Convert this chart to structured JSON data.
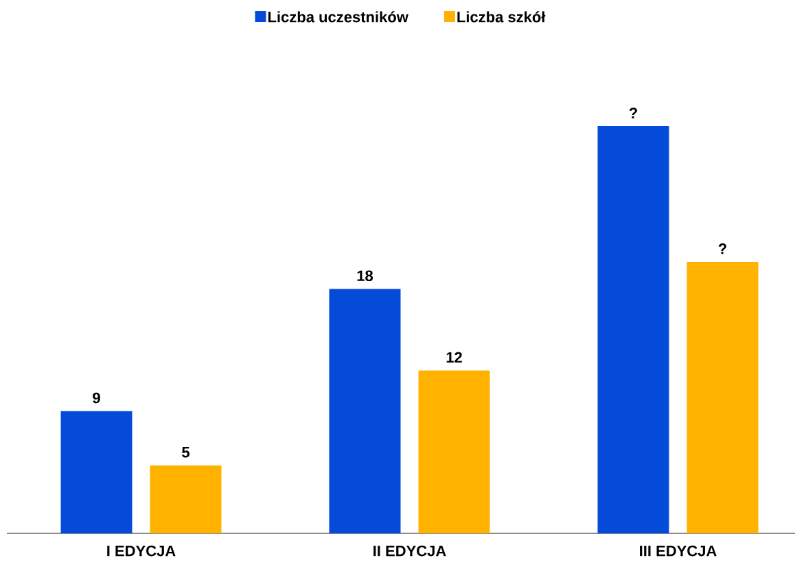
{
  "chart_data": {
    "type": "bar",
    "categories": [
      "I EDYCJA",
      "II EDYCJA",
      "III EDYCJA"
    ],
    "series": [
      {
        "name": "Liczba uczestników",
        "color": "#044bd9",
        "values": [
          9,
          18,
          30
        ],
        "value_labels": [
          "9",
          "18",
          "?"
        ]
      },
      {
        "name": "Liczba szkół",
        "color": "#ffb200",
        "values": [
          5,
          12,
          20
        ],
        "value_labels": [
          "5",
          "12",
          "?"
        ]
      }
    ],
    "legend": "top"
  }
}
